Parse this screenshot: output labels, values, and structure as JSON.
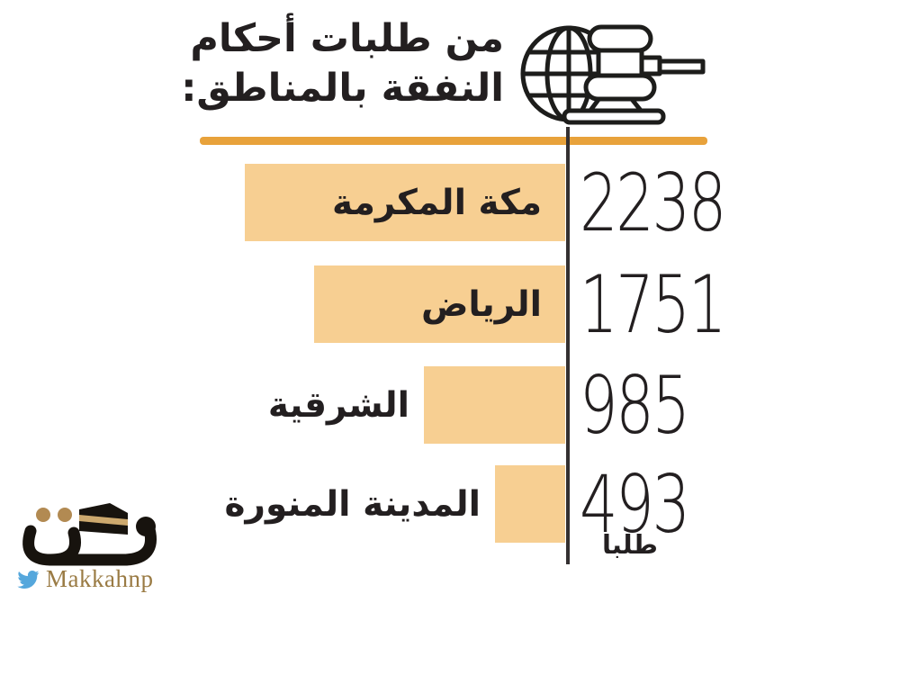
{
  "header": {
    "title_line1": "من طلبات أحكام",
    "title_line2": "النفقة بالمناطق:"
  },
  "chart_data": {
    "type": "bar",
    "orientation": "horizontal",
    "direction": "rtl",
    "title": "من طلبات أحكام النفقة بالمناطق",
    "categories": [
      "مكة المكرمة",
      "الرياض",
      "الشرقية",
      "المدينة المنورة"
    ],
    "values": [
      2238,
      1751,
      985,
      493
    ],
    "unit_label": "طلبا",
    "xlim": [
      0,
      2238
    ],
    "grid": false,
    "legend": false,
    "bar_color": "#f7cf92",
    "accent_line_color": "#e8a23b",
    "axis_color": "#343031",
    "text_color": "#231f20"
  },
  "footer": {
    "logo_text": "مكة",
    "twitter_handle": "Makkahnp",
    "twitter_color": "#55a7dc",
    "handle_color": "#9a7b44"
  }
}
